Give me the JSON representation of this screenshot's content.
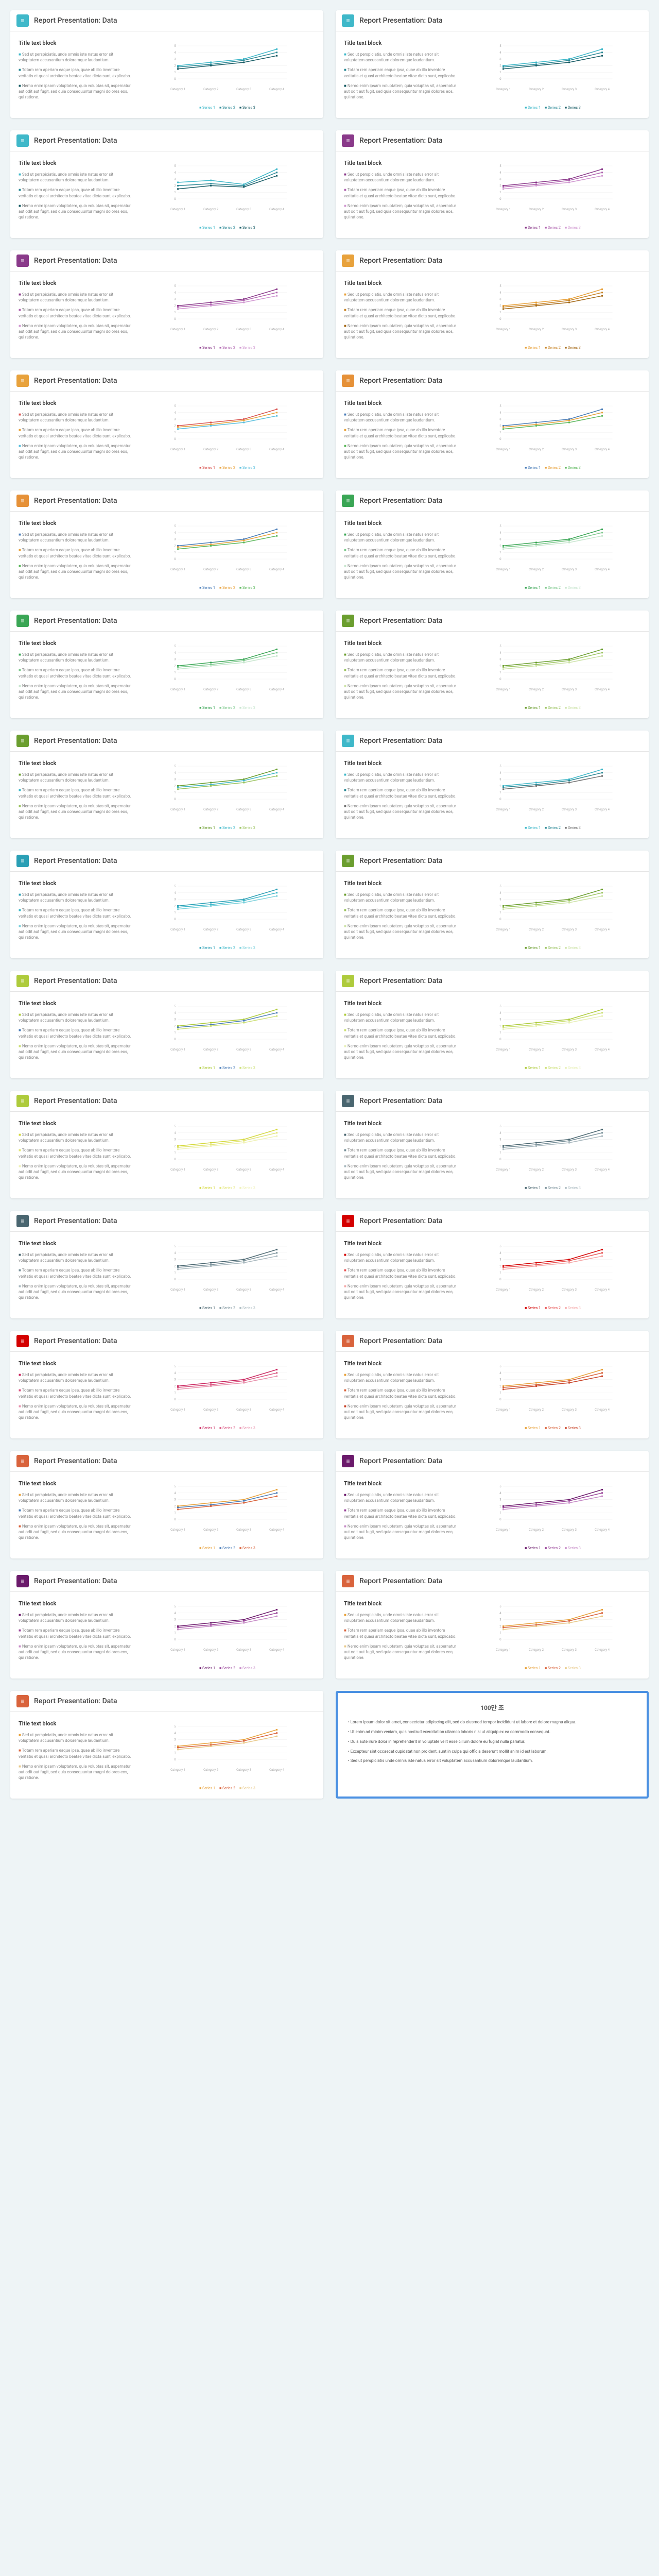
{
  "common": {
    "title": "Report Presentation: Data",
    "textBlockTitle": "Title text block",
    "bullet1": "Sed ut perspiciatis, unde omnis iste natus error sit voluptatem accusantium doloremque laudantium.",
    "bullet2": "Totam rem aperiam eaque ipsa, quae ab illo inventore veritatis et quasi architecto beatae vitae dicta sunt, explicabo.",
    "bullet3": "Nemo enim ipsam voluptatem, quia voluptas sit, aspernatur aut odit aut fugit, sed quia consequuntur magni dolores eos, qui ratione.",
    "categories": [
      "Category 1",
      "Category 2",
      "Category 3",
      "Category 4"
    ],
    "seriesLabels": [
      "Series 1",
      "Series 2",
      "Series 3"
    ],
    "yTicks": [
      0,
      1,
      2,
      3,
      4,
      5
    ]
  },
  "cards": [
    {
      "accent": "#3fb8c9",
      "colors": [
        "#3fb8c9",
        "#2d8a97",
        "#1a5d66"
      ],
      "data": [
        [
          2,
          2.5,
          3,
          4.5
        ],
        [
          1.8,
          2.2,
          2.8,
          4
        ],
        [
          1.5,
          2,
          2.5,
          3.5
        ]
      ]
    },
    {
      "accent": "#3fb8c9",
      "colors": [
        "#3fb8c9",
        "#2d8a97",
        "#1a5d66"
      ],
      "data": [
        [
          2,
          2.5,
          3,
          4.5
        ],
        [
          1.8,
          2.2,
          2.8,
          4
        ],
        [
          1.5,
          2,
          2.5,
          3.5
        ]
      ]
    },
    {
      "accent": "#3fb8c9",
      "colors": [
        "#3fb8c9",
        "#2d8a97",
        "#1a5d66"
      ],
      "data": [
        [
          2.5,
          2.8,
          2.2,
          4.5
        ],
        [
          2,
          2.3,
          2,
          4
        ],
        [
          1.5,
          2,
          1.8,
          3.5
        ]
      ]
    },
    {
      "accent": "#8a3a8a",
      "colors": [
        "#8a3a8a",
        "#b066b0",
        "#d199d1"
      ],
      "data": [
        [
          2,
          2.5,
          3,
          4.5
        ],
        [
          1.8,
          2.2,
          2.8,
          4
        ],
        [
          1.5,
          2,
          2.5,
          3.5
        ]
      ]
    },
    {
      "accent": "#8a3a8a",
      "colors": [
        "#8a3a8a",
        "#b066b0",
        "#d199d1"
      ],
      "data": [
        [
          2,
          2.5,
          3,
          4.5
        ],
        [
          1.8,
          2.2,
          2.8,
          4
        ],
        [
          1.5,
          2,
          2.5,
          3.5
        ]
      ]
    },
    {
      "accent": "#e8a23c",
      "colors": [
        "#e8a23c",
        "#c9862a",
        "#a66b1a"
      ],
      "data": [
        [
          2,
          2.5,
          3,
          4.5
        ],
        [
          1.8,
          2.2,
          2.8,
          4
        ],
        [
          1.5,
          2,
          2.5,
          3.5
        ]
      ]
    },
    {
      "accent": "#e8a23c",
      "colors": [
        "#d9534f",
        "#e8a23c",
        "#5bc0de"
      ],
      "data": [
        [
          2,
          2.5,
          3,
          4.5
        ],
        [
          1.8,
          2.2,
          2.8,
          4
        ],
        [
          1.5,
          2,
          2.5,
          3.5
        ]
      ]
    },
    {
      "accent": "#e69138",
      "colors": [
        "#4a7db8",
        "#e8a23c",
        "#5cb85c"
      ],
      "data": [
        [
          2,
          2.5,
          3,
          4.5
        ],
        [
          1.8,
          2.2,
          2.8,
          4
        ],
        [
          1.5,
          2,
          2.5,
          3.5
        ]
      ]
    },
    {
      "accent": "#e69138",
      "colors": [
        "#4a7db8",
        "#e8a23c",
        "#5cb85c"
      ],
      "data": [
        [
          2,
          2.5,
          3,
          4.5
        ],
        [
          1.8,
          2.2,
          2.8,
          4
        ],
        [
          1.5,
          2,
          2.5,
          3.5
        ]
      ]
    },
    {
      "accent": "#3aa655",
      "colors": [
        "#3aa655",
        "#7ec98e",
        "#c8e6cf"
      ],
      "data": [
        [
          2,
          2.5,
          3,
          4.5
        ],
        [
          1.8,
          2.2,
          2.8,
          4
        ],
        [
          1.5,
          2,
          2.5,
          3.5
        ]
      ]
    },
    {
      "accent": "#3aa655",
      "colors": [
        "#3aa655",
        "#7ec98e",
        "#c8e6cf"
      ],
      "data": [
        [
          2,
          2.5,
          3,
          4.5
        ],
        [
          1.8,
          2.2,
          2.8,
          4
        ],
        [
          1.5,
          2,
          2.5,
          3.5
        ]
      ]
    },
    {
      "accent": "#6b9e2f",
      "colors": [
        "#6b9e2f",
        "#9dc462",
        "#cde3a8"
      ],
      "data": [
        [
          2,
          2.5,
          3,
          4.5
        ],
        [
          1.8,
          2.2,
          2.8,
          4
        ],
        [
          1.5,
          2,
          2.5,
          3.5
        ]
      ]
    },
    {
      "accent": "#6b9e2f",
      "colors": [
        "#6b9e2f",
        "#3fb8c9",
        "#9dc462"
      ],
      "data": [
        [
          2,
          2.5,
          3,
          4.5
        ],
        [
          1.8,
          2.2,
          2.8,
          4
        ],
        [
          1.5,
          2,
          2.5,
          3.5
        ]
      ]
    },
    {
      "accent": "#3fb8c9",
      "colors": [
        "#3fb8c9",
        "#2d8a97",
        "#717171"
      ],
      "data": [
        [
          2,
          2.5,
          3,
          4.5
        ],
        [
          1.8,
          2.2,
          2.8,
          4
        ],
        [
          1.5,
          2,
          2.5,
          3.5
        ]
      ]
    },
    {
      "accent": "#2a9fb5",
      "colors": [
        "#2a9fb5",
        "#3fb8c9",
        "#7dd1dc"
      ],
      "data": [
        [
          2,
          2.5,
          3,
          4.5
        ],
        [
          1.8,
          2.2,
          2.8,
          4
        ],
        [
          1.5,
          2,
          2.5,
          3.5
        ]
      ]
    },
    {
      "accent": "#6b9e2f",
      "colors": [
        "#6b9e2f",
        "#9dc462",
        "#cde3a8"
      ],
      "data": [
        [
          2,
          2.5,
          3,
          4.5
        ],
        [
          1.8,
          2.2,
          2.8,
          4
        ],
        [
          1.5,
          2,
          2.5,
          3.5
        ]
      ]
    },
    {
      "accent": "#aecb3c",
      "colors": [
        "#aecb3c",
        "#4a7db8",
        "#cde077"
      ],
      "data": [
        [
          2,
          2.5,
          3,
          4.5
        ],
        [
          1.8,
          2.2,
          2.8,
          4
        ],
        [
          1.5,
          2,
          2.5,
          3.5
        ]
      ]
    },
    {
      "accent": "#aecb3c",
      "colors": [
        "#aecb3c",
        "#cde077",
        "#e8f0b8"
      ],
      "data": [
        [
          2,
          2.5,
          3,
          4.5
        ],
        [
          1.8,
          2.2,
          2.8,
          4
        ],
        [
          1.5,
          2,
          2.5,
          3.5
        ]
      ]
    },
    {
      "accent": "#aecb3c",
      "colors": [
        "#d4d83c",
        "#e3e677",
        "#f0f2b8"
      ],
      "data": [
        [
          2,
          2.5,
          3,
          4.5
        ],
        [
          1.8,
          2.2,
          2.8,
          4
        ],
        [
          1.5,
          2,
          2.5,
          3.5
        ]
      ]
    },
    {
      "accent": "#4a6670",
      "colors": [
        "#4a6670",
        "#7a919a",
        "#aab9bf"
      ],
      "data": [
        [
          2,
          2.5,
          3,
          4.5
        ],
        [
          1.8,
          2.2,
          2.8,
          4
        ],
        [
          1.5,
          2,
          2.5,
          3.5
        ]
      ]
    },
    {
      "accent": "#4a6670",
      "colors": [
        "#4a6670",
        "#7a919a",
        "#aab9bf"
      ],
      "data": [
        [
          2,
          2.5,
          3,
          4.5
        ],
        [
          1.8,
          2.2,
          2.8,
          4
        ],
        [
          1.5,
          2,
          2.5,
          3.5
        ]
      ]
    },
    {
      "accent": "#d40000",
      "colors": [
        "#d40000",
        "#e85555",
        "#f5aaaa"
      ],
      "data": [
        [
          2,
          2.5,
          3,
          4.5
        ],
        [
          1.8,
          2.2,
          2.8,
          4
        ],
        [
          1.5,
          2,
          2.5,
          3.5
        ]
      ]
    },
    {
      "accent": "#d40000",
      "colors": [
        "#c9255e",
        "#d9537f",
        "#e892ad"
      ],
      "data": [
        [
          2,
          2.5,
          3,
          4.5
        ],
        [
          1.8,
          2.2,
          2.8,
          4
        ],
        [
          1.5,
          2,
          2.5,
          3.5
        ]
      ]
    },
    {
      "accent": "#d9633c",
      "colors": [
        "#e8a23c",
        "#d9633c",
        "#c9452a"
      ],
      "data": [
        [
          2,
          2.5,
          3,
          4.5
        ],
        [
          1.8,
          2.2,
          2.8,
          4
        ],
        [
          1.5,
          2,
          2.5,
          3.5
        ]
      ]
    },
    {
      "accent": "#d9633c",
      "colors": [
        "#e8a23c",
        "#4a7db8",
        "#d9633c"
      ],
      "data": [
        [
          2,
          2.5,
          3,
          4.5
        ],
        [
          1.8,
          2.2,
          2.8,
          4
        ],
        [
          1.5,
          2,
          2.5,
          3.5
        ]
      ]
    },
    {
      "accent": "#6b1a6b",
      "colors": [
        "#6b1a6b",
        "#994499",
        "#c78cc7"
      ],
      "data": [
        [
          2,
          2.5,
          3,
          4.5
        ],
        [
          1.8,
          2.2,
          2.8,
          4
        ],
        [
          1.5,
          2,
          2.5,
          3.5
        ]
      ]
    },
    {
      "accent": "#6b1a6b",
      "colors": [
        "#6b1a6b",
        "#994499",
        "#c78cc7"
      ],
      "data": [
        [
          2,
          2.5,
          3,
          4.5
        ],
        [
          1.8,
          2.2,
          2.8,
          4
        ],
        [
          1.5,
          2,
          2.5,
          3.5
        ]
      ]
    },
    {
      "accent": "#d9633c",
      "colors": [
        "#e8a23c",
        "#d9633c",
        "#e8c98a"
      ],
      "data": [
        [
          2,
          2.5,
          3,
          4.5
        ],
        [
          1.8,
          2.2,
          2.8,
          4
        ],
        [
          1.5,
          2,
          2.5,
          3.5
        ]
      ]
    },
    {
      "accent": "#d9633c",
      "colors": [
        "#e8a23c",
        "#d9633c",
        "#e8c98a"
      ],
      "data": [
        [
          2,
          2.5,
          3,
          4.5
        ],
        [
          1.8,
          2.2,
          2.8,
          4
        ],
        [
          1.5,
          2,
          2.5,
          3.5
        ]
      ]
    }
  ],
  "special": {
    "title": "100만 조",
    "lines": [
      "Lorem ipsum dolor sit amet, consectetur adipiscing elit, sed do eiusmod tempor incididunt ut labore et dolore magna aliqua.",
      "Ut enim ad minim veniam, quis nostrud exercitation ullamco laboris nisi ut aliquip ex ea commodo consequat.",
      "Duis aute irure dolor in reprehenderit in voluptate velit esse cillum dolore eu fugiat nulla pariatur.",
      "Excepteur sint occaecat cupidatat non proident, sunt in culpa qui officia deserunt mollit anim id est laborum.",
      "Sed ut perspiciatis unde omnis iste natus error sit voluptatem accusantium doloremque laudantium."
    ]
  }
}
